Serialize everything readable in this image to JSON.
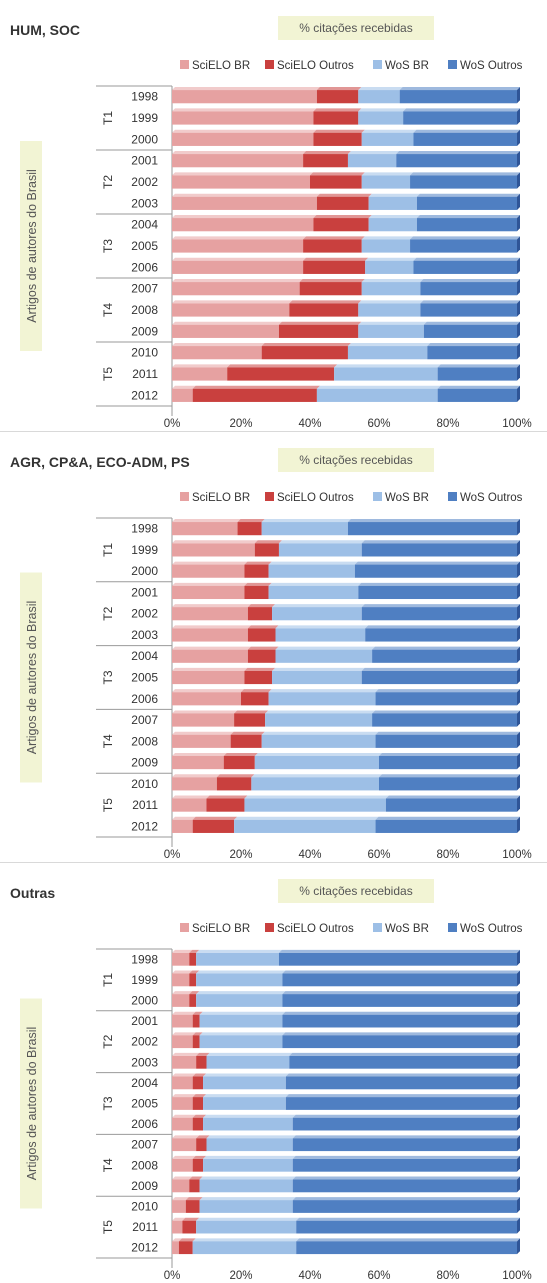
{
  "chart_data": [
    {
      "type": "bar",
      "orientation": "horizontal",
      "stacked": true,
      "percent_stacked": true,
      "panel_title": "HUM, SOC",
      "title": "% citações recebidas",
      "ylabel": "Artigos de autores do Brasil",
      "groups": [
        {
          "name": "T1",
          "years": [
            "1998",
            "1999",
            "2000"
          ]
        },
        {
          "name": "T2",
          "years": [
            "2001",
            "2002",
            "2003"
          ]
        },
        {
          "name": "T3",
          "years": [
            "2004",
            "2005",
            "2006"
          ]
        },
        {
          "name": "T4",
          "years": [
            "2007",
            "2008",
            "2009"
          ]
        },
        {
          "name": "T5",
          "years": [
            "2010",
            "2011",
            "2012"
          ]
        }
      ],
      "categories": [
        "1998",
        "1999",
        "2000",
        "2001",
        "2002",
        "2003",
        "2004",
        "2005",
        "2006",
        "2007",
        "2008",
        "2009",
        "2010",
        "2011",
        "2012"
      ],
      "series": [
        {
          "name": "SciELO BR",
          "color": "#e6a1a1",
          "values": [
            42,
            41,
            41,
            38,
            40,
            42,
            41,
            38,
            38,
            37,
            34,
            31,
            26,
            16,
            6
          ]
        },
        {
          "name": "SciELO Outros",
          "color": "#c9403e",
          "values": [
            12,
            13,
            14,
            13,
            15,
            15,
            16,
            17,
            18,
            18,
            20,
            23,
            25,
            31,
            36
          ]
        },
        {
          "name": "WoS BR",
          "color": "#9dbfe6",
          "values": [
            12,
            13,
            15,
            14,
            14,
            14,
            14,
            14,
            14,
            17,
            18,
            19,
            23,
            30,
            35
          ]
        },
        {
          "name": "WoS Outros",
          "color": "#4f7fc2",
          "values": [
            34,
            33,
            30,
            35,
            31,
            29,
            29,
            31,
            30,
            28,
            28,
            27,
            26,
            23,
            23
          ]
        }
      ],
      "xlim": [
        0,
        100
      ],
      "xticks": [
        "0%",
        "20%",
        "40%",
        "60%",
        "80%",
        "100%"
      ],
      "legend_position": "top"
    },
    {
      "type": "bar",
      "orientation": "horizontal",
      "stacked": true,
      "percent_stacked": true,
      "panel_title": "AGR, CP&A, ECO-ADM, PS",
      "title": "% citações recebidas",
      "ylabel": "Artigos de autores do Brasil",
      "groups": [
        {
          "name": "T1",
          "years": [
            "1998",
            "1999",
            "2000"
          ]
        },
        {
          "name": "T2",
          "years": [
            "2001",
            "2002",
            "2003"
          ]
        },
        {
          "name": "T3",
          "years": [
            "2004",
            "2005",
            "2006"
          ]
        },
        {
          "name": "T4",
          "years": [
            "2007",
            "2008",
            "2009"
          ]
        },
        {
          "name": "T5",
          "years": [
            "2010",
            "2011",
            "2012"
          ]
        }
      ],
      "categories": [
        "1998",
        "1999",
        "2000",
        "2001",
        "2002",
        "2003",
        "2004",
        "2005",
        "2006",
        "2007",
        "2008",
        "2009",
        "2010",
        "2011",
        "2012"
      ],
      "series": [
        {
          "name": "SciELO BR",
          "color": "#e6a1a1",
          "values": [
            19,
            24,
            21,
            21,
            22,
            22,
            22,
            21,
            20,
            18,
            17,
            15,
            13,
            10,
            6
          ]
        },
        {
          "name": "SciELO Outros",
          "color": "#c9403e",
          "values": [
            7,
            7,
            7,
            7,
            7,
            8,
            8,
            8,
            8,
            9,
            9,
            9,
            10,
            11,
            12
          ]
        },
        {
          "name": "WoS BR",
          "color": "#9dbfe6",
          "values": [
            25,
            24,
            25,
            26,
            26,
            26,
            28,
            26,
            31,
            31,
            33,
            36,
            37,
            41,
            41
          ]
        },
        {
          "name": "WoS Outros",
          "color": "#4f7fc2",
          "values": [
            49,
            45,
            47,
            46,
            45,
            44,
            42,
            45,
            41,
            42,
            41,
            40,
            40,
            38,
            41
          ]
        }
      ],
      "xlim": [
        0,
        100
      ],
      "xticks": [
        "0%",
        "20%",
        "40%",
        "60%",
        "80%",
        "100%"
      ],
      "legend_position": "top"
    },
    {
      "type": "bar",
      "orientation": "horizontal",
      "stacked": true,
      "percent_stacked": true,
      "panel_title": "Outras",
      "title": "% citações recebidas",
      "ylabel": "Artigos de autores do Brasil",
      "groups": [
        {
          "name": "T1",
          "years": [
            "1998",
            "1999",
            "2000"
          ]
        },
        {
          "name": "T2",
          "years": [
            "2001",
            "2002",
            "2003"
          ]
        },
        {
          "name": "T3",
          "years": [
            "2004",
            "2005",
            "2006"
          ]
        },
        {
          "name": "T4",
          "years": [
            "2007",
            "2008",
            "2009"
          ]
        },
        {
          "name": "T5",
          "years": [
            "2010",
            "2011",
            "2012"
          ]
        }
      ],
      "categories": [
        "1998",
        "1999",
        "2000",
        "2001",
        "2002",
        "2003",
        "2004",
        "2005",
        "2006",
        "2007",
        "2008",
        "2009",
        "2010",
        "2011",
        "2012"
      ],
      "series": [
        {
          "name": "SciELO BR",
          "color": "#e6a1a1",
          "values": [
            5,
            5,
            5,
            6,
            6,
            7,
            6,
            6,
            6,
            7,
            6,
            5,
            4,
            3,
            2
          ]
        },
        {
          "name": "SciELO Outros",
          "color": "#c9403e",
          "values": [
            2,
            2,
            2,
            2,
            2,
            3,
            3,
            3,
            3,
            3,
            3,
            3,
            4,
            4,
            4
          ]
        },
        {
          "name": "WoS BR",
          "color": "#9dbfe6",
          "values": [
            24,
            25,
            25,
            24,
            24,
            24,
            24,
            24,
            26,
            25,
            26,
            27,
            27,
            29,
            30
          ]
        },
        {
          "name": "WoS Outros",
          "color": "#4f7fc2",
          "values": [
            69,
            68,
            68,
            68,
            68,
            66,
            67,
            67,
            65,
            65,
            65,
            65,
            65,
            64,
            64
          ]
        }
      ],
      "xlim": [
        0,
        100
      ],
      "xticks": [
        "0%",
        "20%",
        "40%",
        "60%",
        "80%",
        "100%"
      ],
      "legend_position": "top"
    }
  ]
}
